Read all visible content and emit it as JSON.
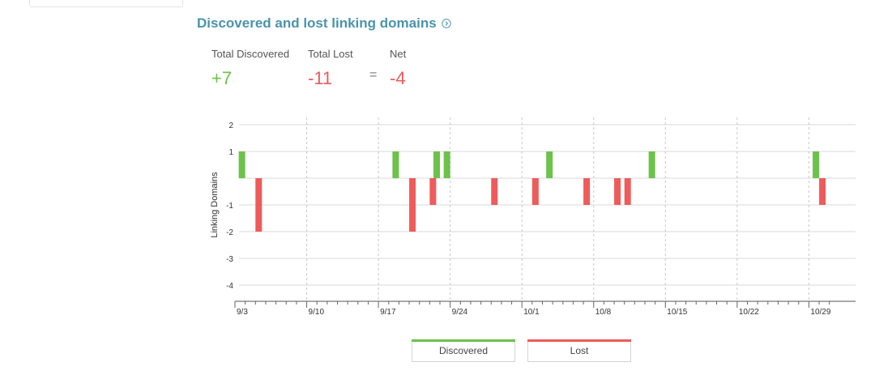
{
  "header": {
    "title": "Discovered and lost linking domains",
    "info_icon": "info-circle-chevron-icon"
  },
  "stats": {
    "discovered_label": "Total Discovered",
    "discovered_value": "+7",
    "lost_label": "Total Lost",
    "lost_value": "-11",
    "equals": "=",
    "net_label": "Net",
    "net_value": "-4"
  },
  "colors": {
    "discovered": "#6cc24a",
    "lost": "#ee5b5b",
    "title": "#4a93ad",
    "grid": "#d8d8d8"
  },
  "chart_data": {
    "type": "bar",
    "title": "",
    "xlabel": "",
    "ylabel": "Linking Domains",
    "ylim": [
      -4.6,
      2
    ],
    "yticks": [
      2,
      1,
      -1,
      -2,
      -3,
      -4
    ],
    "x_start_date": "9/3",
    "x_end_date": "10/31",
    "x_tick_labels": [
      "9/3",
      "9/10",
      "9/17",
      "9/24",
      "10/1",
      "10/8",
      "10/15",
      "10/22",
      "10/29"
    ],
    "grid": true,
    "legend_position": "bottom-center",
    "series": [
      {
        "name": "Discovered",
        "color": "#6cc24a",
        "points": [
          {
            "date": "9/4",
            "value": 1
          },
          {
            "date": "9/19",
            "value": 1
          },
          {
            "date": "9/23",
            "value": 1
          },
          {
            "date": "9/24",
            "value": 1
          },
          {
            "date": "10/4",
            "value": 1
          },
          {
            "date": "10/14",
            "value": 1
          },
          {
            "date": "10/30",
            "value": 1
          }
        ]
      },
      {
        "name": "Lost",
        "color": "#ee5b5b",
        "points": [
          {
            "date": "9/5",
            "value": -2
          },
          {
            "date": "9/20",
            "value": -2
          },
          {
            "date": "9/22",
            "value": -1
          },
          {
            "date": "9/28",
            "value": -1
          },
          {
            "date": "10/2",
            "value": -1
          },
          {
            "date": "10/7",
            "value": -1
          },
          {
            "date": "10/10",
            "value": -1
          },
          {
            "date": "10/11",
            "value": -1
          },
          {
            "date": "10/30",
            "value": -1
          }
        ]
      }
    ]
  },
  "legend": {
    "discovered_label": "Discovered",
    "lost_label": "Lost"
  }
}
